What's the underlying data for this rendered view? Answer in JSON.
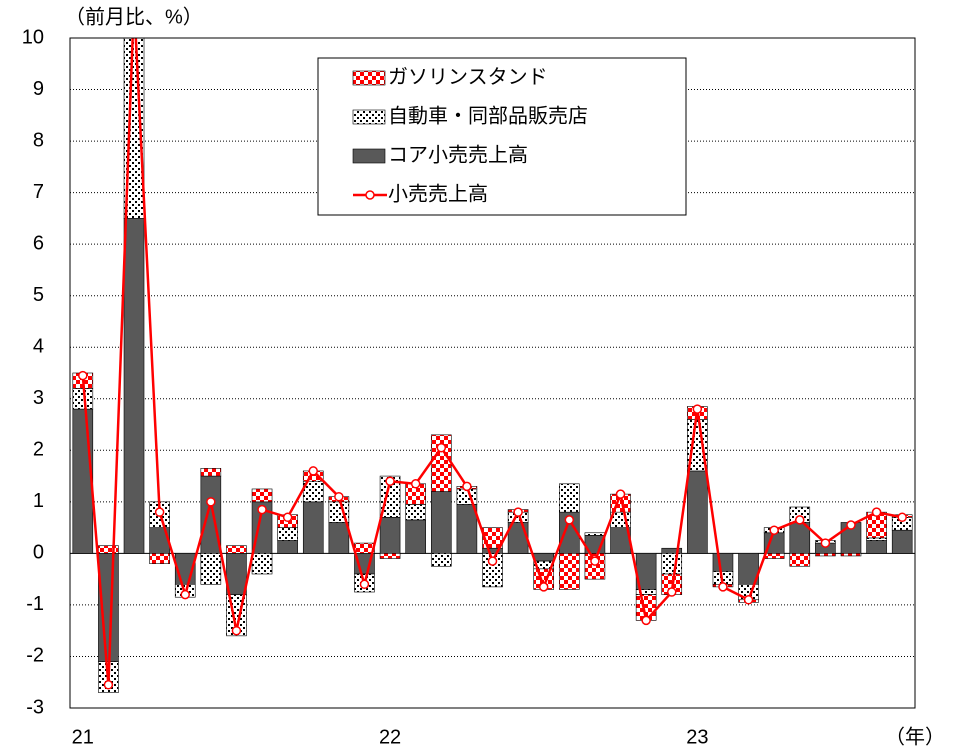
{
  "chart_data": {
    "type": "stacked_bar_line",
    "y_axis_label": "（前月比、%）",
    "x_axis_label": "（年）",
    "categories": [
      "21",
      null,
      null,
      null,
      null,
      null,
      null,
      null,
      null,
      null,
      null,
      null,
      "22",
      null,
      null,
      null,
      null,
      null,
      null,
      null,
      null,
      null,
      null,
      null,
      "23",
      null,
      null,
      null,
      null,
      null,
      null,
      null,
      null
    ],
    "series": [
      {
        "name": "ガソリンスタンド",
        "kind": "bar",
        "color": "#ff0000",
        "values": [
          0.3,
          0.15,
          0.5,
          -0.2,
          0,
          0.15,
          0.15,
          0.25,
          0.25,
          0.2,
          0.1,
          0.2,
          -0.1,
          0.4,
          1.1,
          0.05,
          0.4,
          0.05,
          -0.4,
          -0.7,
          -0.5,
          0.35,
          -0.5,
          -0.4,
          0.25,
          -0.05,
          -0.05,
          -0.1,
          -0.25,
          -0.05,
          -0.05,
          0.5,
          0.05
        ]
      },
      {
        "name": "自動車・同部品販売店",
        "kind": "bar",
        "color": "#000000",
        "values": [
          0.4,
          -0.6,
          3.5,
          0.5,
          -0.25,
          -0.6,
          -0.8,
          -0.4,
          0.25,
          0.4,
          0.4,
          -0.35,
          0.8,
          0.3,
          -0.25,
          0.3,
          -0.65,
          0.2,
          -0.15,
          0.55,
          0.05,
          0.3,
          -0.1,
          -0.4,
          1.0,
          -0.25,
          -0.3,
          0.1,
          0.3,
          0.05,
          0,
          0.05,
          0.25
        ]
      },
      {
        "name": "コア小売売上高",
        "kind": "bar",
        "color": "#595959",
        "values": [
          2.8,
          -2.1,
          6.5,
          0.5,
          -0.6,
          1.5,
          -0.8,
          1.0,
          0.25,
          1.0,
          0.6,
          -0.4,
          0.7,
          0.65,
          1.2,
          0.95,
          0.1,
          0.6,
          -0.15,
          0.8,
          0.35,
          0.5,
          -0.7,
          0.1,
          1.6,
          -0.35,
          -0.6,
          0.4,
          0.6,
          0.2,
          0.6,
          0.25,
          0.45
        ]
      },
      {
        "name": "小売売上高",
        "kind": "line",
        "color": "#ff0000",
        "values": [
          3.45,
          -2.55,
          10.7,
          0.8,
          -0.8,
          1.0,
          -1.5,
          0.85,
          0.7,
          1.6,
          1.1,
          -0.6,
          1.4,
          1.35,
          2.05,
          1.3,
          -0.15,
          0.8,
          -0.65,
          0.65,
          -0.15,
          1.15,
          -1.3,
          -0.75,
          2.8,
          -0.65,
          -0.9,
          0.45,
          0.65,
          0.2,
          0.55,
          0.8,
          0.7
        ]
      }
    ],
    "ylim": [
      -3,
      10
    ],
    "yticks": [
      -3,
      -2,
      -1,
      0,
      1,
      2,
      3,
      4,
      5,
      6,
      7,
      8,
      9,
      10
    ],
    "grid": true
  }
}
